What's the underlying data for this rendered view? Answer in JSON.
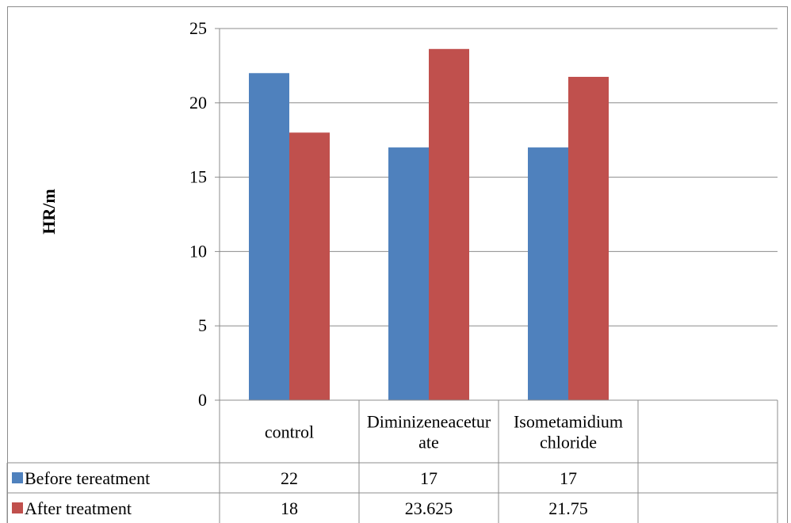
{
  "chart_data": {
    "type": "bar",
    "title": "",
    "xlabel": "",
    "ylabel": "HR/m",
    "ylim": [
      0,
      25
    ],
    "yticks": [
      0,
      5,
      10,
      15,
      20,
      25
    ],
    "grid": true,
    "legend": "data-table",
    "categories": [
      [
        "control"
      ],
      [
        "Diminizeneacetur",
        "ate"
      ],
      [
        "Isometamidium",
        "chloride"
      ],
      [
        ""
      ]
    ],
    "series": [
      {
        "name": "Before tereatment",
        "color": "#4f81bd",
        "values": [
          22,
          17,
          17,
          null
        ],
        "labels": [
          "22",
          "17",
          "17",
          ""
        ]
      },
      {
        "name": "After treatment",
        "color": "#c0504d",
        "values": [
          18,
          23.625,
          21.75,
          null
        ],
        "labels": [
          "18",
          "23.625",
          "21.75",
          ""
        ]
      }
    ]
  }
}
